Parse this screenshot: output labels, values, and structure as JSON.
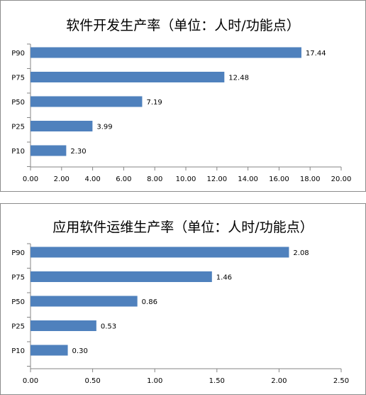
{
  "chart_data": [
    {
      "type": "bar",
      "orientation": "horizontal",
      "title": "软件开发生产率（单位：人时/功能点）",
      "categories": [
        "P90",
        "P75",
        "P50",
        "P25",
        "P10"
      ],
      "values": [
        17.44,
        12.48,
        7.19,
        3.99,
        2.3
      ],
      "value_labels": [
        "17.44",
        "12.48",
        "7.19",
        "3.99",
        "2.30"
      ],
      "xlim": [
        0,
        20
      ],
      "xticks": [
        "0.00",
        "2.00",
        "4.00",
        "6.00",
        "8.00",
        "10.00",
        "12.00",
        "14.00",
        "16.00",
        "18.00",
        "20.00"
      ],
      "xlabel": "",
      "ylabel": "",
      "bar_color": "#4f81bd",
      "grid": false
    },
    {
      "type": "bar",
      "orientation": "horizontal",
      "title": "应用软件运维生产率（单位：人时/功能点）",
      "categories": [
        "P90",
        "P75",
        "P50",
        "P25",
        "P10"
      ],
      "values": [
        2.08,
        1.46,
        0.86,
        0.53,
        0.3
      ],
      "value_labels": [
        "2.08",
        "1.46",
        "0.86",
        "0.53",
        "0.30"
      ],
      "xlim": [
        0,
        2.5
      ],
      "xticks": [
        "0.00",
        "0.50",
        "1.00",
        "1.50",
        "2.00",
        "2.50"
      ],
      "xlabel": "",
      "ylabel": "",
      "bar_color": "#4f81bd",
      "grid": false
    }
  ]
}
